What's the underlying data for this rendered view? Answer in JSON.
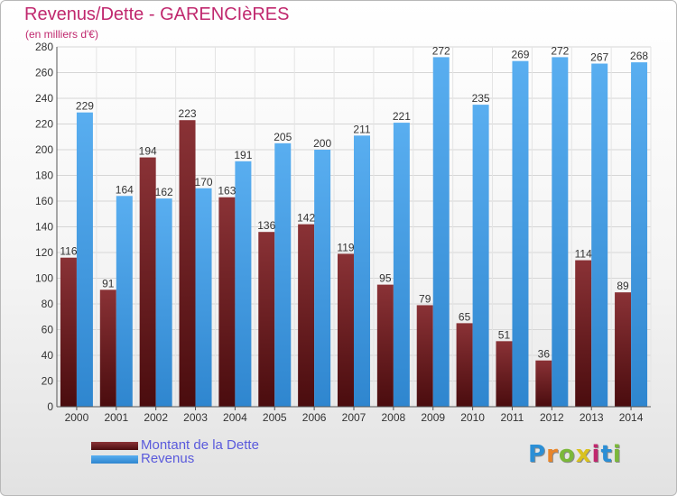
{
  "title": "Revenus/Dette - GARENCIèRES",
  "subtitle": "(en milliers d'€)",
  "logo": "Proxiti",
  "colors": {
    "dette": "#6b1c1e",
    "revenus": "#3d98de",
    "title": "#c0286e",
    "legend_text": "#5a5adc"
  },
  "legend": [
    {
      "label": "Montant de la Dette",
      "color": "#6b1c1e"
    },
    {
      "label": "Revenus",
      "color": "#3d98de"
    }
  ],
  "chart_data": {
    "type": "bar",
    "title": "Revenus/Dette - GARENCIèRES",
    "subtitle": "(en milliers d'€)",
    "xlabel": "",
    "ylabel": "",
    "ylim": [
      0,
      280
    ],
    "yticks": [
      0,
      20,
      40,
      60,
      80,
      100,
      120,
      140,
      160,
      180,
      200,
      220,
      240,
      260,
      280
    ],
    "grid": true,
    "legend_position": "bottom-left",
    "categories": [
      "2000",
      "2001",
      "2002",
      "2003",
      "2004",
      "2005",
      "2006",
      "2007",
      "2008",
      "2009",
      "2010",
      "2011",
      "2012",
      "2013",
      "2014"
    ],
    "series": [
      {
        "name": "Montant de la Dette",
        "values": [
          116,
          91,
          194,
          223,
          163,
          136,
          142,
          119,
          95,
          79,
          65,
          51,
          36,
          114,
          89
        ]
      },
      {
        "name": "Revenus",
        "values": [
          229,
          164,
          162,
          170,
          191,
          205,
          200,
          211,
          221,
          272,
          235,
          269,
          272,
          267,
          268
        ]
      }
    ]
  }
}
